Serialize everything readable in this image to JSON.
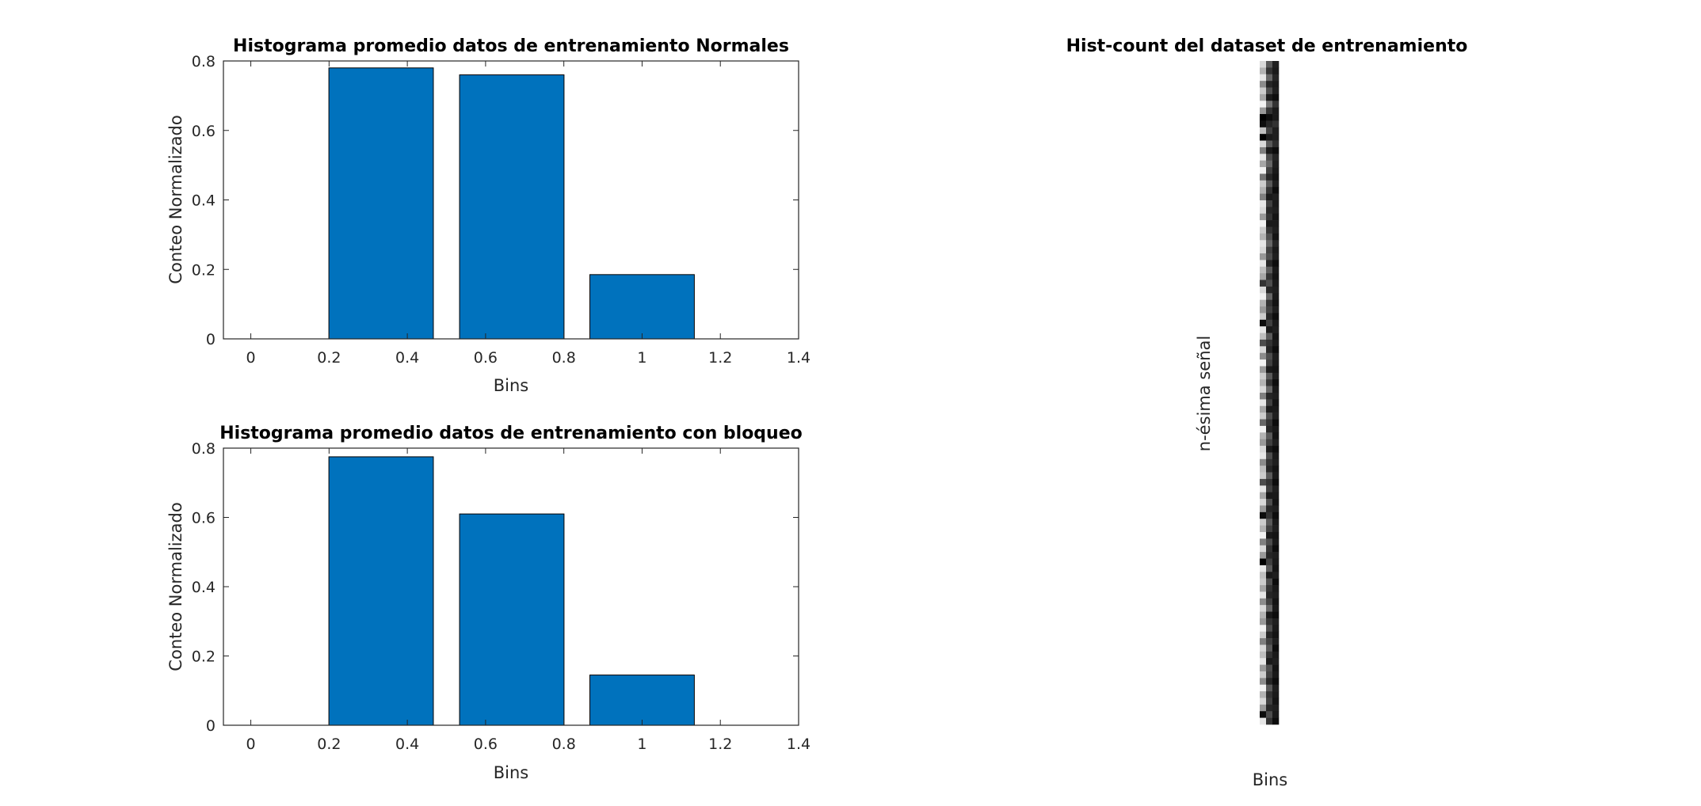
{
  "colors": {
    "bar_fill": "#0072bd",
    "bar_edge": "#000000",
    "axes": "#262626",
    "background": "#ffffff"
  },
  "chart_data": [
    {
      "type": "bar",
      "title": "Histograma promedio datos de entrenamiento Normales",
      "xlabel": "Bins",
      "ylabel": "Conteo Normalizado",
      "x": [
        0.333,
        0.667,
        1.0
      ],
      "values": [
        0.78,
        0.76,
        0.185
      ],
      "bar_width": 0.267,
      "xlim": [
        -0.07,
        1.4
      ],
      "ylim": [
        0,
        0.8
      ],
      "xticks": [
        0,
        0.2,
        0.4,
        0.6,
        0.8,
        1,
        1.2,
        1.4
      ],
      "xticklabels": [
        "0",
        "0.2",
        "0.4",
        "0.6",
        "0.8",
        "1",
        "1.2",
        "1.4"
      ],
      "yticks": [
        0,
        0.2,
        0.4,
        0.6,
        0.8
      ],
      "yticklabels": [
        "0",
        "0.2",
        "0.4",
        "0.6",
        "0.8"
      ],
      "grid": false
    },
    {
      "type": "bar",
      "title": "Histograma promedio datos de entrenamiento con bloqueo",
      "xlabel": "Bins",
      "ylabel": "Conteo Normalizado",
      "x": [
        0.333,
        0.667,
        1.0
      ],
      "values": [
        0.775,
        0.61,
        0.145
      ],
      "bar_width": 0.267,
      "xlim": [
        -0.07,
        1.4
      ],
      "ylim": [
        0,
        0.8
      ],
      "xticks": [
        0,
        0.2,
        0.4,
        0.6,
        0.8,
        1,
        1.2,
        1.4
      ],
      "xticklabels": [
        "0",
        "0.2",
        "0.4",
        "0.6",
        "0.8",
        "1",
        "1.2",
        "1.4"
      ],
      "yticks": [
        0,
        0.2,
        0.4,
        0.6,
        0.8
      ],
      "yticklabels": [
        "0",
        "0.2",
        "0.4",
        "0.6",
        "0.8"
      ],
      "grid": false
    },
    {
      "type": "heatmap",
      "title": "Hist-count del dataset de entrenamiento",
      "xlabel": "Bins",
      "ylabel": "n-ésima señal",
      "colormap": "gray",
      "rows": 100,
      "columns": 3,
      "values": [
        [
          0.85,
          0.35,
          0.12
        ],
        [
          0.7,
          0.2,
          0.1
        ],
        [
          0.9,
          0.4,
          0.15
        ],
        [
          0.55,
          0.15,
          0.1
        ],
        [
          0.8,
          0.3,
          0.12
        ],
        [
          0.65,
          0.1,
          0.05
        ],
        [
          0.95,
          0.45,
          0.2
        ],
        [
          0.6,
          0.2,
          0.1
        ],
        [
          0.0,
          0.05,
          0.1
        ],
        [
          0.05,
          0.15,
          0.2
        ],
        [
          0.75,
          0.25,
          0.12
        ],
        [
          0.0,
          0.1,
          0.12
        ],
        [
          0.85,
          0.35,
          0.18
        ],
        [
          0.5,
          0.1,
          0.05
        ],
        [
          0.9,
          0.3,
          0.15
        ],
        [
          0.65,
          0.4,
          0.12
        ],
        [
          0.95,
          0.25,
          0.1
        ],
        [
          0.45,
          0.15,
          0.08
        ],
        [
          0.8,
          0.35,
          0.12
        ],
        [
          0.7,
          0.2,
          0.05
        ],
        [
          0.5,
          0.1,
          0.12
        ],
        [
          0.9,
          0.25,
          0.1
        ],
        [
          0.85,
          0.15,
          0.12
        ],
        [
          0.6,
          0.2,
          0.08
        ],
        [
          0.95,
          0.1,
          0.1
        ],
        [
          0.8,
          0.2,
          0.12
        ],
        [
          0.7,
          0.3,
          0.08
        ],
        [
          0.9,
          0.4,
          0.15
        ],
        [
          0.85,
          0.25,
          0.1
        ],
        [
          0.6,
          0.3,
          0.12
        ],
        [
          0.9,
          0.15,
          0.05
        ],
        [
          0.75,
          0.35,
          0.1
        ],
        [
          0.65,
          0.2,
          0.08
        ],
        [
          0.2,
          0.3,
          0.1
        ],
        [
          0.85,
          0.15,
          0.12
        ],
        [
          0.95,
          0.4,
          0.1
        ],
        [
          0.7,
          0.2,
          0.08
        ],
        [
          0.6,
          0.25,
          0.12
        ],
        [
          0.8,
          0.15,
          0.05
        ],
        [
          0.05,
          0.25,
          0.1
        ],
        [
          0.9,
          0.1,
          0.12
        ],
        [
          0.75,
          0.35,
          0.08
        ],
        [
          0.3,
          0.2,
          0.1
        ],
        [
          0.85,
          0.15,
          0.05
        ],
        [
          0.55,
          0.3,
          0.12
        ],
        [
          0.95,
          0.25,
          0.1
        ],
        [
          0.6,
          0.1,
          0.08
        ],
        [
          0.8,
          0.35,
          0.12
        ],
        [
          0.7,
          0.2,
          0.05
        ],
        [
          0.85,
          0.4,
          0.1
        ],
        [
          0.5,
          0.15,
          0.12
        ],
        [
          0.9,
          0.25,
          0.08
        ],
        [
          0.65,
          0.1,
          0.1
        ],
        [
          0.8,
          0.3,
          0.12
        ],
        [
          0.4,
          0.2,
          0.05
        ],
        [
          0.95,
          0.15,
          0.1
        ],
        [
          0.7,
          0.35,
          0.08
        ],
        [
          0.6,
          0.25,
          0.12
        ],
        [
          0.85,
          0.1,
          0.05
        ],
        [
          0.9,
          0.3,
          0.1
        ],
        [
          0.55,
          0.2,
          0.12
        ],
        [
          0.75,
          0.15,
          0.08
        ],
        [
          0.8,
          0.35,
          0.1
        ],
        [
          0.3,
          0.2,
          0.05
        ],
        [
          0.9,
          0.25,
          0.12
        ],
        [
          0.65,
          0.1,
          0.1
        ],
        [
          0.85,
          0.3,
          0.08
        ],
        [
          0.6,
          0.15,
          0.12
        ],
        [
          0.05,
          0.2,
          0.05
        ],
        [
          0.8,
          0.35,
          0.1
        ],
        [
          0.7,
          0.25,
          0.12
        ],
        [
          0.95,
          0.1,
          0.08
        ],
        [
          0.5,
          0.3,
          0.1
        ],
        [
          0.85,
          0.2,
          0.05
        ],
        [
          0.6,
          0.15,
          0.12
        ],
        [
          0.0,
          0.25,
          0.1
        ],
        [
          0.9,
          0.35,
          0.08
        ],
        [
          0.75,
          0.1,
          0.12
        ],
        [
          0.8,
          0.3,
          0.05
        ],
        [
          0.65,
          0.2,
          0.1
        ],
        [
          0.9,
          0.15,
          0.12
        ],
        [
          0.55,
          0.25,
          0.08
        ],
        [
          0.85,
          0.4,
          0.1
        ],
        [
          0.7,
          0.1,
          0.05
        ],
        [
          0.6,
          0.2,
          0.12
        ],
        [
          0.95,
          0.3,
          0.1
        ],
        [
          0.8,
          0.15,
          0.08
        ],
        [
          0.5,
          0.25,
          0.12
        ],
        [
          0.85,
          0.35,
          0.05
        ],
        [
          0.75,
          0.2,
          0.1
        ],
        [
          0.9,
          0.1,
          0.12
        ],
        [
          0.6,
          0.3,
          0.08
        ],
        [
          0.8,
          0.25,
          0.1
        ],
        [
          0.55,
          0.15,
          0.05
        ],
        [
          0.95,
          0.35,
          0.12
        ],
        [
          0.7,
          0.2,
          0.1
        ],
        [
          0.85,
          0.25,
          0.08
        ],
        [
          0.6,
          0.15,
          0.12
        ],
        [
          0.05,
          0.3,
          0.1
        ],
        [
          0.9,
          0.2,
          0.05
        ]
      ]
    }
  ]
}
